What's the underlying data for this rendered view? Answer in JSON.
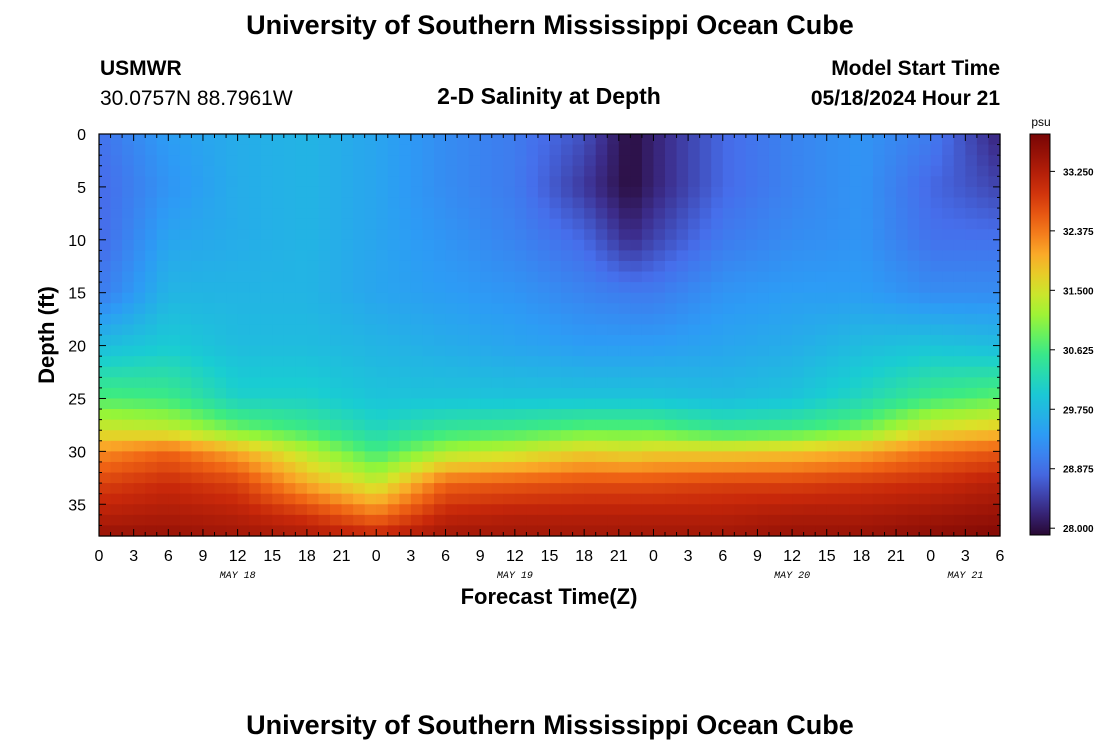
{
  "header": {
    "title": "University of Southern Mississippi Ocean Cube",
    "station": "USMWR",
    "coords": "30.0757N  88.7961W",
    "subtitle": "2-D Salinity at Depth",
    "start_label": "Model Start Time",
    "start_value": "05/18/2024 Hour 21"
  },
  "footer": {
    "title": "University of Southern Mississippi Ocean Cube"
  },
  "chart_data": {
    "type": "heatmap",
    "title": "2-D Salinity at Depth",
    "xlabel": "Forecast Time(Z)",
    "ylabel": "Depth (ft)",
    "x_range_hours": [
      0,
      78
    ],
    "y_range_ft": [
      0,
      38
    ],
    "y_inverted": true,
    "x_tick_labels": [
      "0",
      "3",
      "6",
      "9",
      "12",
      "15",
      "18",
      "21",
      "0",
      "3",
      "6",
      "9",
      "12",
      "15",
      "18",
      "21",
      "0",
      "3",
      "6",
      "9",
      "12",
      "15",
      "18",
      "21",
      "0",
      "3",
      "6"
    ],
    "y_tick_labels": [
      "0",
      "5",
      "10",
      "15",
      "20",
      "25",
      "30",
      "35"
    ],
    "y_tick_values": [
      0,
      5,
      10,
      15,
      20,
      25,
      30,
      35
    ],
    "date_labels": [
      {
        "label": "MAY 18",
        "hour": 12
      },
      {
        "label": "MAY 19",
        "hour": 36
      },
      {
        "label": "MAY 20",
        "hour": 60
      },
      {
        "label": "MAY 21",
        "hour": 75
      }
    ],
    "colorbar": {
      "unit": "psu",
      "min": 27.9,
      "max": 33.8,
      "tick_labels": [
        "28.000",
        "28.875",
        "29.750",
        "30.625",
        "31.500",
        "32.375",
        "33.250"
      ],
      "tick_values": [
        28.0,
        28.875,
        29.75,
        30.625,
        31.5,
        32.375,
        33.25
      ]
    },
    "grid": false,
    "salinity_profiles": {
      "hours": [
        0,
        6,
        12,
        18,
        24,
        30,
        36,
        42,
        46,
        48,
        54,
        60,
        66,
        72,
        78
      ],
      "depths_ft": [
        0,
        5,
        10,
        15,
        20,
        25,
        28,
        30,
        33,
        36,
        38
      ],
      "psu": [
        [
          28.9,
          28.8,
          28.8,
          29.0,
          29.8,
          30.7,
          31.5,
          32.2,
          32.8,
          33.2,
          33.5
        ],
        [
          29.4,
          29.3,
          29.5,
          29.7,
          30.0,
          30.6,
          31.4,
          32.5,
          33.0,
          33.3,
          33.5
        ],
        [
          29.6,
          29.6,
          29.6,
          29.7,
          29.8,
          30.1,
          30.9,
          32.0,
          32.8,
          33.2,
          33.4
        ],
        [
          29.7,
          29.7,
          29.7,
          29.7,
          29.8,
          30.1,
          30.6,
          31.3,
          32.0,
          32.9,
          33.3
        ],
        [
          29.5,
          29.5,
          29.5,
          29.5,
          29.7,
          29.9,
          30.2,
          30.6,
          31.4,
          32.4,
          33.1
        ],
        [
          29.2,
          29.2,
          29.3,
          29.4,
          29.6,
          29.9,
          30.5,
          31.2,
          32.5,
          33.1,
          33.4
        ],
        [
          29.0,
          29.0,
          29.1,
          29.3,
          29.5,
          29.9,
          30.6,
          31.4,
          32.6,
          33.2,
          33.4
        ],
        [
          28.6,
          28.4,
          28.8,
          29.1,
          29.4,
          29.9,
          30.8,
          31.7,
          32.7,
          33.2,
          33.4
        ],
        [
          27.95,
          27.95,
          28.3,
          29.0,
          29.4,
          29.9,
          30.8,
          31.6,
          32.7,
          33.2,
          33.4
        ],
        [
          28.2,
          28.2,
          28.5,
          29.0,
          29.4,
          29.9,
          30.8,
          31.7,
          32.7,
          33.2,
          33.4
        ],
        [
          28.8,
          28.8,
          29.0,
          29.3,
          29.5,
          29.8,
          30.5,
          31.7,
          32.8,
          33.2,
          33.4
        ],
        [
          29.1,
          29.1,
          29.2,
          29.4,
          29.6,
          29.9,
          30.6,
          31.8,
          32.8,
          33.3,
          33.5
        ],
        [
          29.3,
          29.3,
          29.3,
          29.4,
          29.8,
          30.2,
          30.9,
          32.0,
          32.9,
          33.3,
          33.5
        ],
        [
          29.0,
          28.8,
          28.9,
          29.2,
          29.9,
          30.6,
          31.6,
          32.4,
          33.0,
          33.4,
          33.6
        ],
        [
          28.2,
          28.5,
          28.9,
          29.2,
          29.8,
          30.8,
          31.8,
          32.6,
          33.2,
          33.5,
          33.7
        ]
      ]
    }
  }
}
